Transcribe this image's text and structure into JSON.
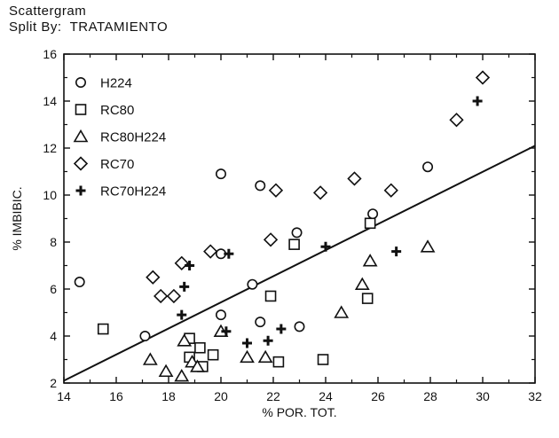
{
  "chart_data": {
    "type": "scatter",
    "title": "Scattergram",
    "subtitle_prefix": "Split By:",
    "subtitle_value": "TRATAMIENTO",
    "xlabel": "% POR. TOT.",
    "ylabel": "% IMBIBIC.",
    "xlim": [
      14,
      32
    ],
    "ylim": [
      2,
      16
    ],
    "xticks": [
      14,
      16,
      18,
      20,
      22,
      24,
      26,
      28,
      30,
      32
    ],
    "yticks": [
      2,
      4,
      6,
      8,
      10,
      12,
      14,
      16
    ],
    "legend_position": "top-left",
    "grid": false,
    "fit_line": {
      "x": [
        14,
        32
      ],
      "y": [
        2.1,
        12.1
      ]
    },
    "series": [
      {
        "name": "H224",
        "marker": "circle",
        "points": [
          [
            14.6,
            6.3
          ],
          [
            17.1,
            4.0
          ],
          [
            20.0,
            10.9
          ],
          [
            20.0,
            7.5
          ],
          [
            20.0,
            4.9
          ],
          [
            21.2,
            6.2
          ],
          [
            21.5,
            10.4
          ],
          [
            21.5,
            4.6
          ],
          [
            22.9,
            8.4
          ],
          [
            23.0,
            4.4
          ],
          [
            25.8,
            9.2
          ],
          [
            27.9,
            11.2
          ]
        ]
      },
      {
        "name": "RC80",
        "marker": "square",
        "points": [
          [
            15.5,
            4.3
          ],
          [
            18.8,
            3.9
          ],
          [
            18.8,
            3.1
          ],
          [
            19.2,
            3.5
          ],
          [
            19.3,
            2.7
          ],
          [
            19.7,
            3.2
          ],
          [
            21.9,
            5.7
          ],
          [
            22.2,
            2.9
          ],
          [
            22.8,
            7.9
          ],
          [
            23.9,
            3.0
          ],
          [
            25.6,
            5.6
          ],
          [
            25.7,
            8.8
          ]
        ]
      },
      {
        "name": "RC80H224",
        "marker": "triangle",
        "points": [
          [
            17.3,
            3.0
          ],
          [
            17.9,
            2.5
          ],
          [
            18.5,
            2.3
          ],
          [
            18.6,
            3.8
          ],
          [
            18.9,
            2.9
          ],
          [
            19.1,
            2.7
          ],
          [
            20.0,
            4.2
          ],
          [
            21.0,
            3.1
          ],
          [
            21.7,
            3.1
          ],
          [
            24.6,
            5.0
          ],
          [
            25.4,
            6.2
          ],
          [
            25.7,
            7.2
          ],
          [
            27.9,
            7.8
          ]
        ]
      },
      {
        "name": "RC70",
        "marker": "diamond",
        "points": [
          [
            17.4,
            6.5
          ],
          [
            17.7,
            5.7
          ],
          [
            18.2,
            5.7
          ],
          [
            18.5,
            7.1
          ],
          [
            19.6,
            7.6
          ],
          [
            21.9,
            8.1
          ],
          [
            22.1,
            10.2
          ],
          [
            23.8,
            10.1
          ],
          [
            25.1,
            10.7
          ],
          [
            26.5,
            10.2
          ],
          [
            29.0,
            13.2
          ],
          [
            30.0,
            15.0
          ]
        ]
      },
      {
        "name": "RC70H224",
        "marker": "plus",
        "points": [
          [
            18.5,
            4.9
          ],
          [
            18.6,
            6.1
          ],
          [
            18.8,
            7.0
          ],
          [
            20.2,
            4.2
          ],
          [
            20.3,
            7.5
          ],
          [
            21.0,
            3.7
          ],
          [
            21.8,
            3.8
          ],
          [
            22.3,
            4.3
          ],
          [
            24.0,
            7.8
          ],
          [
            26.7,
            7.6
          ],
          [
            29.8,
            14.0
          ]
        ]
      }
    ]
  }
}
